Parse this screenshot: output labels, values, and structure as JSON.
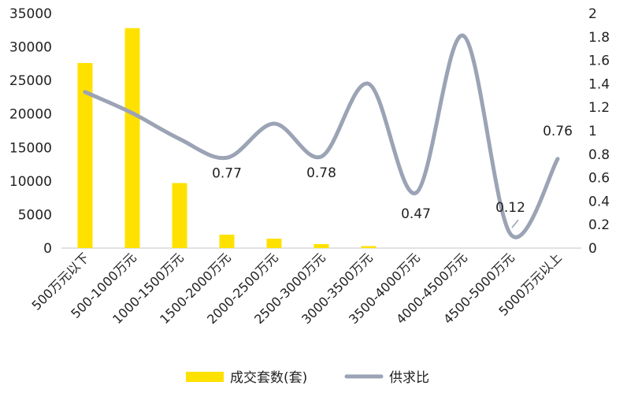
{
  "chart_data": {
    "type": "bar",
    "categories": [
      "500万元以下",
      "500-1000万元",
      "1000-1500万元",
      "1500-2000万元",
      "2000-2500万元",
      "2500-3000万元",
      "3000-3500万元",
      "3500-4000万元",
      "4000-4500万元",
      "4500-5000万元",
      "5000万元以上"
    ],
    "series": [
      {
        "name": "成交套数(套)",
        "type": "bar",
        "axis": "left",
        "color": "#FFE100",
        "values": [
          27600,
          32800,
          9700,
          2000,
          1400,
          600,
          300,
          0,
          0,
          0,
          0
        ]
      },
      {
        "name": "供求比",
        "type": "line",
        "axis": "right",
        "color": "#9BA3B5",
        "smooth": true,
        "values": [
          1.33,
          1.15,
          0.93,
          0.77,
          1.06,
          0.78,
          1.4,
          0.47,
          1.81,
          0.12,
          0.76
        ]
      }
    ],
    "y_left": {
      "ylim": [
        0,
        35000
      ],
      "ticks": [
        "0",
        "5000",
        "10000",
        "15000",
        "20000",
        "25000",
        "30000",
        "35000"
      ]
    },
    "y_right": {
      "ylim": [
        0,
        2
      ],
      "ticks": [
        "0",
        "0.2",
        "0.4",
        "0.6",
        "0.8",
        "1",
        "1.2",
        "1.4",
        "1.6",
        "1.8",
        "2"
      ]
    },
    "data_labels": [
      {
        "index": 3,
        "text": "0.77"
      },
      {
        "index": 5,
        "text": "0.78"
      },
      {
        "index": 7,
        "text": "0.47"
      },
      {
        "index": 9,
        "text": "0.12"
      },
      {
        "index": 10,
        "text": "0.76"
      }
    ],
    "legend_position": "bottom",
    "grid": false
  }
}
